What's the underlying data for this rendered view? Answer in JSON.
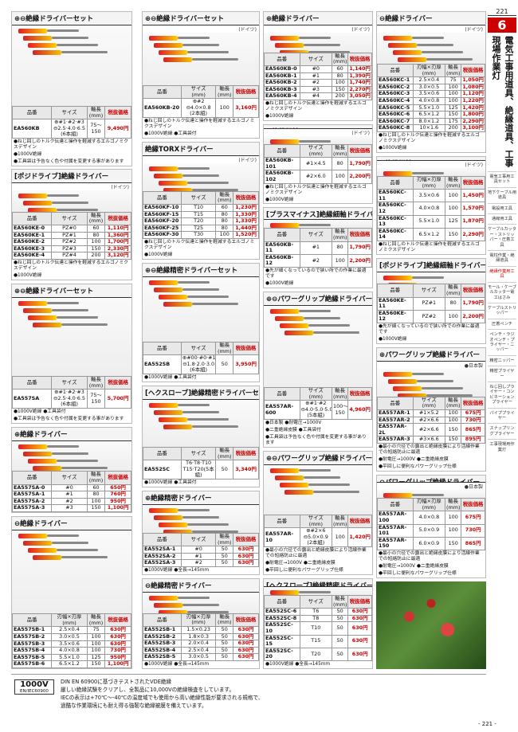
{
  "sections": [
    {
      "title": "⊕⊖絶縁ドライバーセット",
      "origin": "",
      "headers": [
        "品番",
        "サイズ",
        "軸長\n(mm)",
        "税抜価格"
      ],
      "rows": [
        [
          "EA560KB",
          "⊕#1·#2·#3\n⊖2.5·4.0·6.5\n(6本組)",
          "75〜\n150",
          "9,490円"
        ]
      ],
      "notes": [
        "●ねじ回しのトルク伝達と操作を軽減するエルゴノミクスデザイン",
        "●1000V絶縁",
        "●工具袋は予告なく色や付属を変更する事があります"
      ]
    },
    {
      "title": "[ポジドライブ]絶縁ドライバー",
      "origin": "(ドイツ)",
      "headers": [
        "品番",
        "サイズ",
        "軸長\n(mm)",
        "税抜価格"
      ],
      "rows": [
        [
          "EA560KE-0",
          "PZ#0",
          "60",
          "1,110円"
        ],
        [
          "EA560KE-1",
          "PZ#1",
          "80",
          "1,360円"
        ],
        [
          "EA560KE-2",
          "PZ#2",
          "100",
          "1,700円"
        ],
        [
          "EA560KE-3",
          "PZ#3",
          "150",
          "2,330円"
        ],
        [
          "EA560KE-4",
          "PZ#4",
          "200",
          "3,120円"
        ]
      ],
      "notes": [
        "●ねじ回しのトルク伝達と操作を軽減するエルゴノミクスデザイン",
        "●1000V絶縁"
      ]
    },
    {
      "title": "⊕⊖絶縁ドライバーセット",
      "origin": "",
      "headers": [
        "品番",
        "サイズ",
        "軸長\n(mm)",
        "税抜価格"
      ],
      "rows": [
        [
          "EA557SA",
          "⊕#1·#2·#3\n⊖2.5·4.0·6.5\n(6本組)",
          "75〜\n150",
          "5,700円"
        ]
      ],
      "notes": [
        "●1000V絶縁 ●工具袋付",
        "●工具袋は予告なく色や付属を変更する事があります"
      ]
    },
    {
      "title": "⊕絶縁ドライバー",
      "origin": "",
      "headers": [
        "品番",
        "サイズ",
        "軸長\n(mm)",
        "税抜価格"
      ],
      "rows": [
        [
          "EA557SA-0",
          "#0",
          "60",
          "650円"
        ],
        [
          "EA557SA-1",
          "#1",
          "80",
          "760円"
        ],
        [
          "EA557SA-2",
          "#2",
          "100",
          "950円"
        ],
        [
          "EA557SA-3",
          "#3",
          "150",
          "1,100円"
        ]
      ],
      "notes": []
    },
    {
      "title": "⊖絶縁ドライバー",
      "origin": "",
      "headers": [
        "品番",
        "刃幅×刃厚\n(mm)",
        "軸長\n(mm)",
        "税抜価格"
      ],
      "rows": [
        [
          "EA557SB-1",
          "2.5×0.4",
          "75",
          "630円"
        ],
        [
          "EA557SB-2",
          "3.0×0.5",
          "100",
          "630円"
        ],
        [
          "EA557SB-3",
          "3.5×0.6",
          "100",
          "630円"
        ],
        [
          "EA557SB-4",
          "4.0×0.8",
          "100",
          "730円"
        ],
        [
          "EA557SB-5",
          "5.5×1.0",
          "125",
          "950円"
        ],
        [
          "EA557SB-6",
          "6.5×1.2",
          "150",
          "1,100円"
        ]
      ],
      "notes": []
    },
    {
      "title": "⊕⊖絶縁ドライバーセット",
      "origin": "(ドイツ)",
      "headers": [
        "品番",
        "サイズ\n(mm)",
        "軸長\n(mm)",
        "税抜価格"
      ],
      "rows": [
        [
          "EA560KB-20",
          "⊕#2\n⊖4.0×0.8\n(2本組)",
          "100",
          "3,160円"
        ]
      ],
      "notes": [
        "●ねじ回しのトルク伝達と操作を軽減するエルゴノミクスデザイン",
        "●1000V絶縁 ●工具袋付"
      ]
    },
    {
      "title": "絶縁TORXドライバー",
      "origin": "(ドイツ)",
      "headers": [
        "品番",
        "サイズ",
        "軸長\n(mm)",
        "税抜価格"
      ],
      "rows": [
        [
          "EA560KF-10",
          "T10",
          "60",
          "1,230円"
        ],
        [
          "EA560KF-15",
          "T15",
          "80",
          "1,330円"
        ],
        [
          "EA560KF-20",
          "T20",
          "80",
          "1,330円"
        ],
        [
          "EA560KF-25",
          "T25",
          "80",
          "1,440円"
        ],
        [
          "EA560KF-30",
          "T30",
          "100",
          "1,520円"
        ]
      ],
      "notes": [
        "●ねじ回しのトルク伝達と操作を軽減するエルゴノミクスデザイン",
        "●1000V絶縁"
      ]
    },
    {
      "title": "⊕⊖絶縁精密ドライバーセット",
      "origin": "",
      "headers": [
        "品番",
        "サイズ",
        "軸長\n(mm)",
        "税抜価格"
      ],
      "rows": [
        [
          "EA552SB",
          "⊕#00·#0·#1\n⊖1.8·2.0·3.0\n(6本組)",
          "50",
          "3,950円"
        ]
      ],
      "notes": [
        "●1000V絶縁 ●工具袋付"
      ]
    },
    {
      "title": "[ヘクスローブ]絶縁精密ドライバーセット",
      "origin": "",
      "headers": [
        "品番",
        "サイズ",
        "軸長\n(mm)",
        "税抜価格"
      ],
      "rows": [
        [
          "EA552SC",
          "T6·T8·T10\nT15·T20(5本組)",
          "50",
          "3,340円"
        ]
      ],
      "notes": [
        "●1000V絶縁 ●工具袋付"
      ]
    },
    {
      "title": "⊕絶縁精密ドライバー",
      "origin": "",
      "headers": [
        "品番",
        "サイズ",
        "軸長\n(mm)",
        "税抜価格"
      ],
      "rows": [
        [
          "EA552SA-1",
          "#0",
          "50",
          "630円"
        ],
        [
          "EA552SA-2",
          "#1",
          "50",
          "630円"
        ],
        [
          "EA552SA-3",
          "#2",
          "50",
          "630円"
        ]
      ],
      "notes": [
        "●1000V絶縁 ●全長→145mm"
      ]
    },
    {
      "title": "⊖絶縁精密ドライバー",
      "origin": "",
      "headers": [
        "品番",
        "刃幅×刃厚\n(mm)",
        "軸長\n(mm)",
        "税抜価格"
      ],
      "rows": [
        [
          "EA552SB-1",
          "1.5×0.23",
          "50",
          "630円"
        ],
        [
          "EA552SB-2",
          "1.8×0.3",
          "50",
          "630円"
        ],
        [
          "EA552SB-3",
          "2.0×0.4",
          "50",
          "630円"
        ],
        [
          "EA552SB-4",
          "2.5×0.4",
          "50",
          "630円"
        ],
        [
          "EA552SB-5",
          "3.0×0.5",
          "50",
          "630円"
        ]
      ],
      "notes": [
        "●1000V絶縁 ●全長→145mm"
      ]
    },
    {
      "title": "⊕絶縁ドライバー",
      "origin": "(ドイツ)",
      "headers": [
        "品番",
        "サイズ",
        "軸長\n(mm)",
        "税抜価格"
      ],
      "rows": [
        [
          "EA560KB-0",
          "#0",
          "60",
          "1,140円"
        ],
        [
          "EA560KB-1",
          "#1",
          "80",
          "1,390円"
        ],
        [
          "EA560KB-2",
          "#2",
          "100",
          "1,740円"
        ],
        [
          "EA560KB-3",
          "#3",
          "150",
          "2,270円"
        ],
        [
          "EA560KB-4",
          "#4",
          "200",
          "3,050円"
        ]
      ],
      "notes": [
        "●ねじ回しのトルク伝達と操作を軽減するエルゴノミクスデザイン",
        "●1000V絶縁"
      ]
    },
    {
      "title": "⊕絶縁細軸ドライバー",
      "origin": "(ドイツ)",
      "headers": [
        "品番",
        "サイズ\n(mm)",
        "軸長\n(mm)",
        "税抜価格"
      ],
      "rows": [
        [
          "EA560KB-101",
          "#1×4.5",
          "80",
          "1,790円"
        ],
        [
          "EA560KB-102",
          "#2×6.0",
          "100",
          "2,200円"
        ]
      ],
      "notes": [
        "●ねじ回しのトルク伝達と操作を軽減するエルゴノミクスデザイン",
        "●1000V絶縁"
      ]
    },
    {
      "title": "[プラスマイナス]絶縁細軸ドライバー",
      "origin": "",
      "headers": [
        "品番",
        "サイズ",
        "軸長\n(mm)",
        "税抜価格"
      ],
      "rows": [
        [
          "EA560KB-11",
          "#1",
          "80",
          "1,790円"
        ],
        [
          "EA560KB-12",
          "#2",
          "100",
          "2,200円"
        ]
      ],
      "notes": [
        "●先が細くなっているので狭い所での作業に最適です",
        "●1000V絶縁"
      ]
    },
    {
      "title": "⊕⊖パワーグリップ絶縁ドライバーセット",
      "origin": "",
      "headers": [
        "品番",
        "サイズ\n(mm)",
        "軸長\n(mm)",
        "税抜価格"
      ],
      "rows": [
        [
          "EA557AR-600",
          "⊕#1·#2\n⊖4.0·5.0·5.0\n(5本組)",
          "100〜\n150",
          "4,960円"
        ]
      ],
      "notes": [
        "●日本製 ●耐電圧→1000V",
        "●二重絶縁皮膜 ●工具袋付",
        "●工具袋は予告なく色や付属を変更する事があります"
      ]
    },
    {
      "title": "⊕⊖パワーグリップ絶縁ドライバー",
      "origin": "",
      "headers": [
        "品番",
        "サイズ\n(mm)",
        "軸長\n(mm)",
        "税抜価格"
      ],
      "rows": [
        [
          "EA557AR-10",
          "⊕#2×6\n⊖5.0×0.9\n(2本組)",
          "100",
          "1,420円"
        ]
      ],
      "notes": [
        "●最小の穴径での露出と絶縁皮膜により活線作業での短絡防止に最適",
        "●耐電圧→1000V ●二重絶縁皮膜",
        "●平回しに便利なパワーグリップ仕様"
      ]
    },
    {
      "title": "[ヘクスローブ]絶縁精密ドライバー",
      "origin": "",
      "headers": [
        "品番",
        "サイズ",
        "軸長\n(mm)",
        "税抜価格"
      ],
      "rows": [
        [
          "EA552SC-6",
          "T6",
          "50",
          "630円"
        ],
        [
          "EA552SC-8",
          "T8",
          "50",
          "630円"
        ],
        [
          "EA552SC-10",
          "T10",
          "50",
          "630円"
        ],
        [
          "EA552SC-15",
          "T15",
          "50",
          "630円"
        ],
        [
          "EA552SC-20",
          "T20",
          "50",
          "630円"
        ]
      ],
      "notes": [
        "●1000V絶縁 ●全長→145mm"
      ]
    },
    {
      "title": "⊖絶縁ドライバー",
      "origin": "(ドイツ)",
      "headers": [
        "品番",
        "刃幅×刃厚\n(mm)",
        "軸長\n(mm)",
        "税抜価格"
      ],
      "rows": [
        [
          "EA560KC-1",
          "2.5×0.4",
          "75",
          "1,050円"
        ],
        [
          "EA560KC-2",
          "3.0×0.5",
          "100",
          "1,080円"
        ],
        [
          "EA560KC-3",
          "3.5×0.6",
          "100",
          "1,120円"
        ],
        [
          "EA560KC-4",
          "4.0×0.8",
          "100",
          "1,220円"
        ],
        [
          "EA560KC-5",
          "5.5×1.0",
          "125",
          "1,420円"
        ],
        [
          "EA560KC-6",
          "6.5×1.2",
          "150",
          "1,800円"
        ],
        [
          "EA560KC-7",
          "8.0×1.2",
          "175",
          "2,290円"
        ],
        [
          "EA560KC-8",
          "10×1.6",
          "200",
          "3,100円"
        ]
      ],
      "notes": [
        "●ねじ回しのトルク伝達と操作を軽減するエルゴノミクスデザイン",
        "●1000V絶縁"
      ]
    },
    {
      "title": "⊖絶縁細軸ドライバー",
      "origin": "(ドイツ)",
      "headers": [
        "品番",
        "刃幅×刃厚\n(mm)",
        "軸長\n(mm)",
        "税抜価格"
      ],
      "rows": [
        [
          "EA560KC-11",
          "3.5×0.6",
          "100",
          "1,450円"
        ],
        [
          "EA560KC-12",
          "4.0×0.8",
          "100",
          "1,570円"
        ],
        [
          "EA560KC-13",
          "5.5×1.0",
          "125",
          "1,870円"
        ],
        [
          "EA560KC-14",
          "6.5×1.2",
          "150",
          "2,290円"
        ]
      ],
      "notes": [
        "●ねじ回しのトルク伝達と操作を軽減するエルゴノミクスデザイン",
        "●1000V絶縁"
      ]
    },
    {
      "title": "[ポジドライブ]絶縁細軸ドライバー",
      "origin": "",
      "headers": [
        "品番",
        "サイズ",
        "軸長\n(mm)",
        "税抜価格"
      ],
      "rows": [
        [
          "EA560KE-11",
          "PZ#1",
          "80",
          "1,790円"
        ],
        [
          "EA560KE-12",
          "PZ#2",
          "100",
          "2,200円"
        ]
      ],
      "notes": [
        "●先が細くなっているので狭い所での作業に最適です",
        "●1000V絶縁"
      ]
    },
    {
      "title": "⊕パワーグリップ絶縁ドライバー",
      "origin": "●日本製",
      "headers": [
        "品番",
        "サイズ\n(mm)",
        "軸長\n(mm)",
        "税抜価格"
      ],
      "rows": [
        [
          "EA557AR-1",
          "#1×5.2",
          "100",
          "675円"
        ],
        [
          "EA557AR-2",
          "#2×6.6",
          "100",
          "730円"
        ],
        [
          "EA557AR-2L",
          "#2×6.6",
          "150",
          "865円"
        ],
        [
          "EA557AR-3",
          "#3×6.6",
          "150",
          "895円"
        ]
      ],
      "notes": [
        "●最小の穴径での露出と絶縁皮膜により活線作業での短絡防止に最適",
        "●耐電圧→1000V ●二重絶縁皮膜",
        "●平回しに便利なパワーグリップ仕様"
      ]
    },
    {
      "title": "⊖パワーグリップ絶縁ドライバー",
      "origin": "●日本製",
      "headers": [
        "品番",
        "刃幅×刃厚\n(mm)",
        "軸長\n(mm)",
        "税抜価格"
      ],
      "rows": [
        [
          "EA557AR-100",
          "4.0×0.8",
          "100",
          "675円"
        ],
        [
          "EA557AR-101",
          "5.0×0.9",
          "100",
          "730円"
        ],
        [
          "EA557AR-150",
          "6.0×0.9",
          "150",
          "865円"
        ]
      ],
      "notes": [
        "●最小の穴径での露出と絶縁皮膜により活線作業での短絡防止に最適",
        "●耐電圧→1000V ●二重絶縁皮膜",
        "●平回しに便利なパワーグリップ仕様"
      ]
    }
  ],
  "sidebar": {
    "page": "221",
    "chapter": "6",
    "title": "電気工事用道具、絶縁道具、工事現場作業灯",
    "index": [
      "電気工事用工具セット",
      "地下ケーブル用道具",
      "電設用工具",
      "通線用工具",
      "ケーブルカッター・ストリッパー・圧着工具",
      "電柱作業・絶縁道具",
      "絶縁作業用工具",
      "モール・ケーブルカッター電工はさみ",
      "ケーブルストリッパー",
      "圧着ペンチ",
      "ペンチ・ラジオペンチ・プライヤー・ニッパー",
      "精密ニッパー",
      "精密プライヤー",
      "ねじ回しプライヤー・コンビネーションプライヤー",
      "パイププライヤー",
      "スナップリングプライヤー",
      "工事現場用作業灯"
    ]
  },
  "footer": {
    "badge": "1000V",
    "badge_sub": "EN/IEC60900",
    "lines": [
      "DIN EN 60900に基づきテストされたVDE絶縁",
      "厳しい絶縁試験をクリアし、全製品に10,000Vの絶縁検査をしています。",
      "IECの表示は+70℃〜-40℃の温度域でも使用から高い絶縁性能が要求される規格で、",
      "過酷な作業環境にも耐え得る強靭な絶縁被膜を備えています。"
    ],
    "page": "- 221 -"
  }
}
